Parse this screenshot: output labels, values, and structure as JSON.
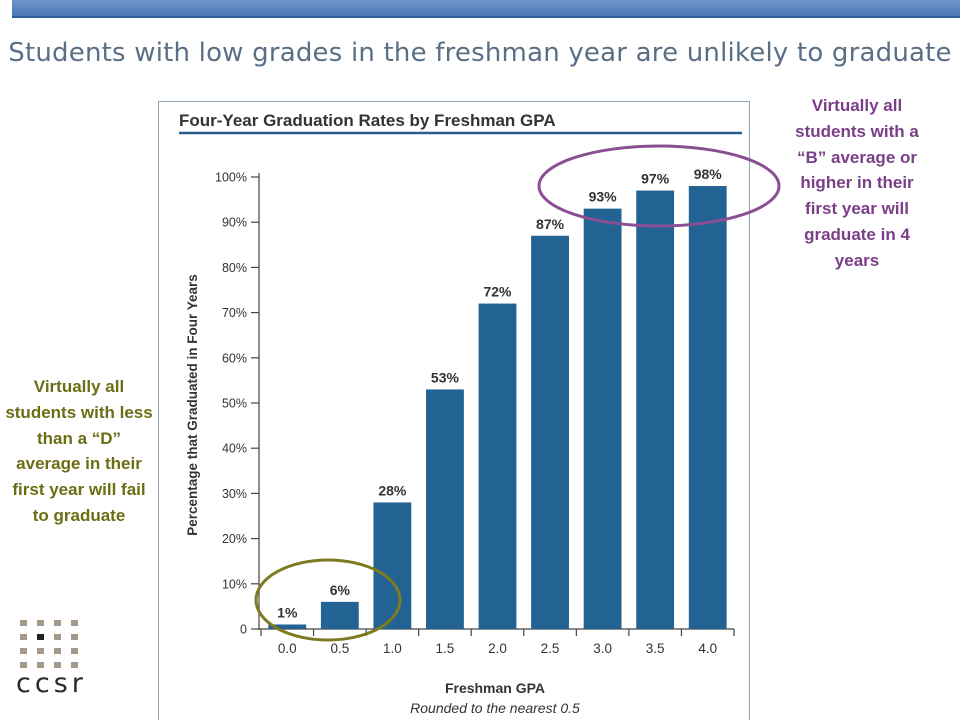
{
  "slide": {
    "title": "Students with low grades in the freshman year are unlikely to graduate"
  },
  "notes": {
    "right": "Virtually all students with a “B” average or higher in their first year will graduate in 4 years",
    "left": "Virtually all students with less than a “D” average in their first year will fail to graduate"
  },
  "logo": {
    "text": "ccsr"
  },
  "colors": {
    "bar": "#236394",
    "title_rule": "#2b5d8c",
    "right_note": "#7a3f86",
    "left_note": "#6b6e14",
    "right_circle": "#8a4e93",
    "left_circle": "#7d7a22"
  },
  "chart_data": {
    "type": "bar",
    "title": "Four-Year Graduation Rates by Freshman GPA",
    "xlabel": "Freshman GPA",
    "xlabel_note": "Rounded to the nearest 0.5",
    "ylabel": "Percentage that Graduated in Four Years",
    "categories": [
      "0.0",
      "0.5",
      "1.0",
      "1.5",
      "2.0",
      "2.5",
      "3.0",
      "3.5",
      "4.0"
    ],
    "values": [
      1,
      6,
      28,
      53,
      72,
      87,
      93,
      97,
      98
    ],
    "data_labels": [
      "1%",
      "6%",
      "28%",
      "53%",
      "72%",
      "87%",
      "93%",
      "97%",
      "98%"
    ],
    "ylim": [
      0,
      100
    ],
    "yticks": [
      0,
      10,
      20,
      30,
      40,
      50,
      60,
      70,
      80,
      90,
      100
    ],
    "ytick_labels": [
      "0",
      "10%",
      "20%",
      "30%",
      "40%",
      "50%",
      "60%",
      "70%",
      "80%",
      "90%",
      "100%"
    ],
    "grid": false,
    "legend": "none"
  }
}
